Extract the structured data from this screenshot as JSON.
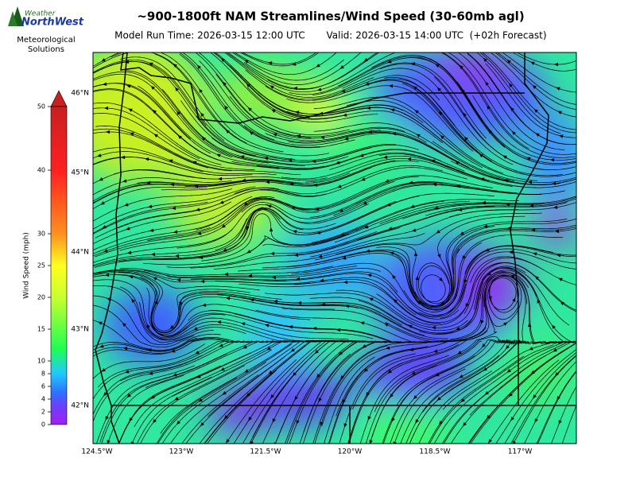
{
  "header": {
    "title": "~900-1800ft NAM Streamlines/Wind Speed (30-60mb agl)",
    "model_run": "Model Run Time: 2026-03-15 12:00 UTC",
    "valid": "Valid: 2026-03-15 14:00 UTC  (+02h Forecast)"
  },
  "logo": {
    "brand_top": "Weather",
    "brand_bottom": "NorthWest",
    "org": [
      "Meteorological",
      "Solutions"
    ]
  },
  "colorbar": {
    "label": "Wind Speed (mph)",
    "lim": [
      0,
      50
    ],
    "ticks": [
      0,
      2,
      4,
      6,
      8,
      10,
      15,
      20,
      25,
      30,
      40,
      50
    ]
  },
  "map": {
    "lat_labels": [
      "46°N",
      "45°N",
      "44°N",
      "43°N",
      "42°N"
    ],
    "lon_labels": [
      "124.5°W",
      "123°W",
      "121.5°W",
      "120°W",
      "118.5°W",
      "117°W"
    ]
  }
}
